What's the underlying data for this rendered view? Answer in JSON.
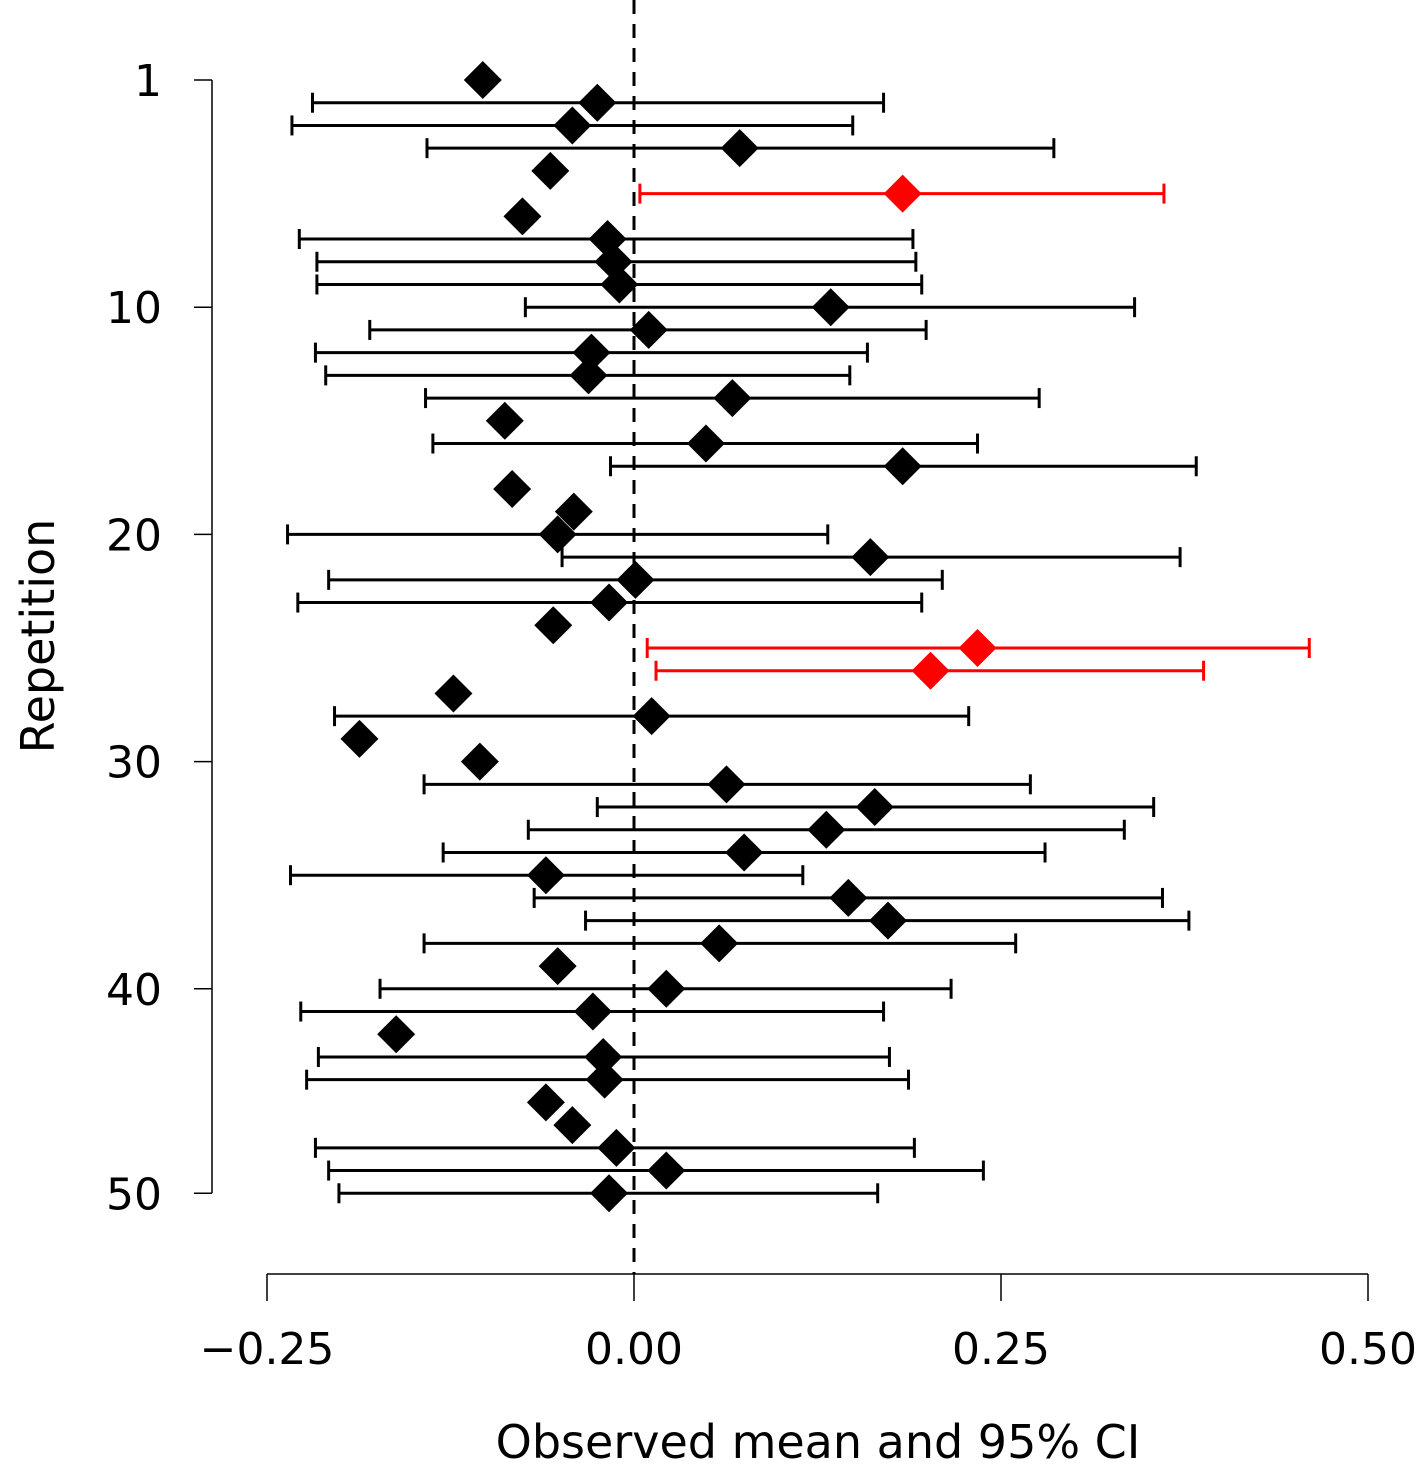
{
  "chart_data": {
    "type": "scatter",
    "subtype": "forest-plot",
    "title": "",
    "xlabel": "Observed mean and 95% CI",
    "ylabel": "Repetition",
    "xlim": [
      -0.25,
      0.5
    ],
    "x_ticks": [
      -0.25,
      0.0,
      0.25,
      0.5
    ],
    "x_tick_labels": [
      "−0.25",
      "0.00",
      "0.25",
      "0.50"
    ],
    "y_ticks": [
      0,
      10,
      20,
      30,
      40,
      49
    ],
    "y_tick_labels": [
      "1",
      "10",
      "20",
      "30",
      "40",
      "50"
    ],
    "y_direction": "top-to-bottom",
    "reference_line": {
      "x": 0.0,
      "style": "dashed",
      "color": "#000000"
    },
    "colors": {
      "default": "#000000",
      "highlight": "#ff0000"
    },
    "marker": "diamond",
    "grid": false,
    "legend": "none",
    "points": [
      {
        "rep": 0,
        "mean": -0.103,
        "lo": null,
        "hi": null,
        "highlight": false
      },
      {
        "rep": 1,
        "mean": -0.025,
        "lo": -0.219,
        "hi": 0.17,
        "highlight": false
      },
      {
        "rep": 2,
        "mean": -0.042,
        "lo": -0.233,
        "hi": 0.149,
        "highlight": false
      },
      {
        "rep": 3,
        "mean": 0.072,
        "lo": -0.141,
        "hi": 0.286,
        "highlight": false
      },
      {
        "rep": 4,
        "mean": -0.057,
        "lo": null,
        "hi": null,
        "highlight": false
      },
      {
        "rep": 5,
        "mean": 0.183,
        "lo": 0.004,
        "hi": 0.361,
        "highlight": true
      },
      {
        "rep": 6,
        "mean": -0.076,
        "lo": null,
        "hi": null,
        "highlight": false
      },
      {
        "rep": 7,
        "mean": -0.018,
        "lo": -0.228,
        "hi": 0.19,
        "highlight": false
      },
      {
        "rep": 8,
        "mean": -0.014,
        "lo": -0.216,
        "hi": 0.192,
        "highlight": false
      },
      {
        "rep": 9,
        "mean": -0.01,
        "lo": -0.216,
        "hi": 0.196,
        "highlight": false
      },
      {
        "rep": 10,
        "mean": 0.134,
        "lo": -0.074,
        "hi": 0.341,
        "highlight": false
      },
      {
        "rep": 11,
        "mean": 0.01,
        "lo": -0.18,
        "hi": 0.199,
        "highlight": false
      },
      {
        "rep": 12,
        "mean": -0.029,
        "lo": -0.217,
        "hi": 0.159,
        "highlight": false
      },
      {
        "rep": 13,
        "mean": -0.031,
        "lo": -0.21,
        "hi": 0.147,
        "highlight": false
      },
      {
        "rep": 14,
        "mean": 0.067,
        "lo": -0.142,
        "hi": 0.276,
        "highlight": false
      },
      {
        "rep": 15,
        "mean": -0.088,
        "lo": null,
        "hi": null,
        "highlight": false
      },
      {
        "rep": 16,
        "mean": 0.049,
        "lo": -0.137,
        "hi": 0.234,
        "highlight": false
      },
      {
        "rep": 17,
        "mean": 0.183,
        "lo": -0.016,
        "hi": 0.383,
        "highlight": false
      },
      {
        "rep": 18,
        "mean": -0.083,
        "lo": null,
        "hi": null,
        "highlight": false
      },
      {
        "rep": 19,
        "mean": -0.041,
        "lo": null,
        "hi": null,
        "highlight": false
      },
      {
        "rep": 20,
        "mean": -0.052,
        "lo": -0.236,
        "hi": 0.132,
        "highlight": false
      },
      {
        "rep": 21,
        "mean": 0.161,
        "lo": -0.049,
        "hi": 0.372,
        "highlight": false
      },
      {
        "rep": 22,
        "mean": 0.001,
        "lo": -0.208,
        "hi": 0.21,
        "highlight": false
      },
      {
        "rep": 23,
        "mean": -0.017,
        "lo": -0.229,
        "hi": 0.196,
        "highlight": false
      },
      {
        "rep": 24,
        "mean": -0.055,
        "lo": null,
        "hi": null,
        "highlight": false
      },
      {
        "rep": 25,
        "mean": 0.234,
        "lo": 0.009,
        "hi": 0.46,
        "highlight": true
      },
      {
        "rep": 26,
        "mean": 0.202,
        "lo": 0.015,
        "hi": 0.388,
        "highlight": true
      },
      {
        "rep": 27,
        "mean": -0.123,
        "lo": null,
        "hi": null,
        "highlight": false
      },
      {
        "rep": 28,
        "mean": 0.012,
        "lo": -0.204,
        "hi": 0.228,
        "highlight": false
      },
      {
        "rep": 29,
        "mean": -0.187,
        "lo": null,
        "hi": null,
        "highlight": false
      },
      {
        "rep": 30,
        "mean": -0.105,
        "lo": null,
        "hi": null,
        "highlight": false
      },
      {
        "rep": 31,
        "mean": 0.063,
        "lo": -0.143,
        "hi": 0.27,
        "highlight": false
      },
      {
        "rep": 32,
        "mean": 0.164,
        "lo": -0.025,
        "hi": 0.354,
        "highlight": false
      },
      {
        "rep": 33,
        "mean": 0.131,
        "lo": -0.072,
        "hi": 0.334,
        "highlight": false
      },
      {
        "rep": 34,
        "mean": 0.075,
        "lo": -0.13,
        "hi": 0.28,
        "highlight": false
      },
      {
        "rep": 35,
        "mean": -0.06,
        "lo": -0.234,
        "hi": 0.115,
        "highlight": false
      },
      {
        "rep": 36,
        "mean": 0.146,
        "lo": -0.068,
        "hi": 0.36,
        "highlight": false
      },
      {
        "rep": 37,
        "mean": 0.173,
        "lo": -0.033,
        "hi": 0.378,
        "highlight": false
      },
      {
        "rep": 38,
        "mean": 0.058,
        "lo": -0.143,
        "hi": 0.26,
        "highlight": false
      },
      {
        "rep": 39,
        "mean": -0.052,
        "lo": null,
        "hi": null,
        "highlight": false
      },
      {
        "rep": 40,
        "mean": 0.022,
        "lo": -0.173,
        "hi": 0.216,
        "highlight": false
      },
      {
        "rep": 41,
        "mean": -0.028,
        "lo": -0.227,
        "hi": 0.17,
        "highlight": false
      },
      {
        "rep": 42,
        "mean": -0.162,
        "lo": null,
        "hi": null,
        "highlight": false
      },
      {
        "rep": 43,
        "mean": -0.021,
        "lo": -0.215,
        "hi": 0.174,
        "highlight": false
      },
      {
        "rep": 44,
        "mean": -0.02,
        "lo": -0.223,
        "hi": 0.187,
        "highlight": false
      },
      {
        "rep": 45,
        "mean": -0.06,
        "lo": null,
        "hi": null,
        "highlight": false
      },
      {
        "rep": 46,
        "mean": -0.042,
        "lo": null,
        "hi": null,
        "highlight": false
      },
      {
        "rep": 47,
        "mean": -0.012,
        "lo": -0.217,
        "hi": 0.191,
        "highlight": false
      },
      {
        "rep": 48,
        "mean": 0.022,
        "lo": -0.208,
        "hi": 0.238,
        "highlight": false
      },
      {
        "rep": 49,
        "mean": -0.017,
        "lo": -0.201,
        "hi": 0.166,
        "highlight": false
      }
    ]
  }
}
